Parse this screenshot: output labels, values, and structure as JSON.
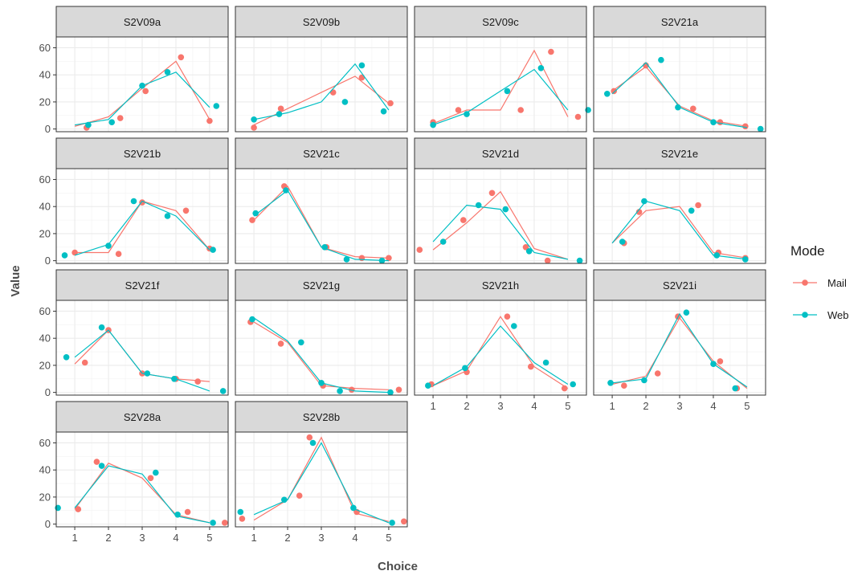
{
  "chart_data": {
    "type": "line+scatter facets",
    "xlabel": "Choice",
    "ylabel": "Value",
    "x": [
      1,
      2,
      3,
      4,
      5
    ],
    "x_ticks": [
      "1",
      "2",
      "3",
      "4",
      "5"
    ],
    "y_ticks": [
      "0",
      "20",
      "40",
      "60"
    ],
    "ylim": [
      -2,
      68
    ],
    "xlim": [
      0.45,
      5.55
    ],
    "grid": true,
    "legend": {
      "title": "Mode",
      "position": "right",
      "entries": [
        {
          "name": "Mail",
          "color": "#F8766D"
        },
        {
          "name": "Web",
          "color": "#00BFC4"
        }
      ]
    },
    "panels": [
      {
        "title": "S2V09a",
        "series": [
          {
            "name": "Mail",
            "line": [
              2,
              9,
              30,
              50,
              7
            ],
            "points": [
              [
                1.35,
                1
              ],
              [
                2.35,
                8
              ],
              [
                3.1,
                28
              ],
              [
                4.15,
                53
              ],
              [
                5.0,
                6
              ]
            ]
          },
          {
            "name": "Web",
            "line": [
              3,
              7,
              32,
              42,
              16
            ],
            "points": [
              [
                1.4,
                3
              ],
              [
                2.1,
                5
              ],
              [
                3.0,
                32
              ],
              [
                3.75,
                42
              ],
              [
                5.2,
                17
              ]
            ]
          }
        ]
      },
      {
        "title": "S2V09b",
        "series": [
          {
            "name": "Mail",
            "line": [
              3,
              15,
              27,
              39,
              19
            ],
            "points": [
              [
                1.0,
                1
              ],
              [
                1.8,
                15
              ],
              [
                3.35,
                27
              ],
              [
                4.2,
                38
              ],
              [
                5.05,
                19
              ]
            ]
          },
          {
            "name": "Web",
            "line": [
              7,
              12,
              20,
              48,
              14
            ],
            "points": [
              [
                1.0,
                7
              ],
              [
                1.75,
                11
              ],
              [
                3.7,
                20
              ],
              [
                4.2,
                47
              ],
              [
                4.85,
                13
              ]
            ]
          }
        ]
      },
      {
        "title": "S2V09c",
        "series": [
          {
            "name": "Mail",
            "line": [
              4,
              14,
              14,
              58,
              9
            ],
            "points": [
              [
                1.0,
                5
              ],
              [
                1.75,
                14
              ],
              [
                3.6,
                14
              ],
              [
                4.5,
                57
              ],
              [
                5.3,
                9
              ]
            ]
          },
          {
            "name": "Web",
            "line": [
              3,
              12,
              28,
              44,
              14
            ],
            "points": [
              [
                1.0,
                3
              ],
              [
                2.0,
                11
              ],
              [
                3.2,
                28
              ],
              [
                4.2,
                45
              ],
              [
                5.6,
                14
              ]
            ]
          }
        ]
      },
      {
        "title": "S2V21a",
        "series": [
          {
            "name": "Mail",
            "line": [
              28,
              46,
              17,
              6,
              2
            ],
            "points": [
              [
                1.05,
                28
              ],
              [
                2.0,
                47
              ],
              [
                3.4,
                15
              ],
              [
                4.2,
                5
              ],
              [
                4.95,
                2
              ]
            ]
          },
          {
            "name": "Web",
            "line": [
              26,
              49,
              16,
              5,
              1
            ],
            "points": [
              [
                0.85,
                26
              ],
              [
                2.45,
                51
              ],
              [
                2.95,
                16
              ],
              [
                4.0,
                5
              ],
              [
                5.4,
                0
              ]
            ]
          }
        ]
      },
      {
        "title": "S2V21b",
        "series": [
          {
            "name": "Mail",
            "line": [
              6,
              6,
              44,
              37,
              8
            ],
            "points": [
              [
                1.0,
                6
              ],
              [
                2.3,
                5
              ],
              [
                3.0,
                43
              ],
              [
                4.3,
                37
              ],
              [
                5.0,
                9
              ]
            ]
          },
          {
            "name": "Web",
            "line": [
              4,
              12,
              44,
              33,
              8
            ],
            "points": [
              [
                0.7,
                4
              ],
              [
                2.0,
                11
              ],
              [
                2.75,
                44
              ],
              [
                3.75,
                33
              ],
              [
                5.1,
                8
              ]
            ]
          }
        ]
      },
      {
        "title": "S2V21c",
        "series": [
          {
            "name": "Mail",
            "line": [
              30,
              55,
              10,
              3,
              2
            ],
            "points": [
              [
                0.95,
                30
              ],
              [
                1.9,
                55
              ],
              [
                3.15,
                10
              ],
              [
                4.2,
                2
              ],
              [
                5.0,
                2
              ]
            ]
          },
          {
            "name": "Web",
            "line": [
              33,
              52,
              10,
              1,
              0
            ],
            "points": [
              [
                1.05,
                35
              ],
              [
                1.95,
                52
              ],
              [
                3.1,
                10
              ],
              [
                3.75,
                1
              ],
              [
                4.8,
                0
              ]
            ]
          }
        ]
      },
      {
        "title": "S2V21d",
        "series": [
          {
            "name": "Mail",
            "line": [
              8,
              28,
              51,
              9,
              1
            ],
            "points": [
              [
                0.6,
                8
              ],
              [
                1.9,
                30
              ],
              [
                2.75,
                50
              ],
              [
                3.75,
                10
              ],
              [
                4.4,
                0
              ]
            ]
          },
          {
            "name": "Web",
            "line": [
              14,
              41,
              38,
              6,
              1
            ],
            "points": [
              [
                1.3,
                14
              ],
              [
                2.35,
                41
              ],
              [
                3.15,
                38
              ],
              [
                3.85,
                7
              ],
              [
                5.35,
                0
              ]
            ]
          }
        ]
      },
      {
        "title": "S2V21e",
        "series": [
          {
            "name": "Mail",
            "line": [
              13,
              37,
              40,
              6,
              2
            ],
            "points": [
              [
                1.35,
                13
              ],
              [
                1.8,
                36
              ],
              [
                3.55,
                41
              ],
              [
                4.15,
                6
              ],
              [
                4.95,
                2
              ]
            ]
          },
          {
            "name": "Web",
            "line": [
              13,
              44,
              37,
              4,
              1
            ],
            "points": [
              [
                1.3,
                14
              ],
              [
                1.95,
                44
              ],
              [
                3.35,
                37
              ],
              [
                4.1,
                4
              ],
              [
                4.95,
                1
              ]
            ]
          }
        ]
      },
      {
        "title": "S2V21f",
        "series": [
          {
            "name": "Mail",
            "line": [
              21,
              46,
              14,
              10,
              8
            ],
            "points": [
              [
                1.3,
                22
              ],
              [
                2.0,
                46
              ],
              [
                3.0,
                14
              ],
              [
                4.0,
                10
              ],
              [
                4.65,
                8
              ]
            ]
          },
          {
            "name": "Web",
            "line": [
              26,
              46,
              14,
              10,
              1
            ],
            "points": [
              [
                0.75,
                26
              ],
              [
                1.8,
                48
              ],
              [
                3.15,
                14
              ],
              [
                3.95,
                10
              ],
              [
                5.4,
                1
              ]
            ]
          }
        ]
      },
      {
        "title": "S2V21g",
        "series": [
          {
            "name": "Mail",
            "line": [
              52,
              37,
              5,
              3,
              2
            ],
            "points": [
              [
                0.9,
                52
              ],
              [
                1.8,
                36
              ],
              [
                3.05,
                5
              ],
              [
                3.9,
                2
              ],
              [
                5.3,
                2
              ]
            ]
          },
          {
            "name": "Web",
            "line": [
              55,
              38,
              7,
              1,
              0
            ],
            "points": [
              [
                0.95,
                54
              ],
              [
                2.4,
                37
              ],
              [
                3.0,
                7
              ],
              [
                3.55,
                1
              ],
              [
                5.05,
                0
              ]
            ]
          }
        ]
      },
      {
        "title": "S2V21h",
        "series": [
          {
            "name": "Mail",
            "line": [
              5,
              16,
              56,
              19,
              3
            ],
            "points": [
              [
                0.95,
                6
              ],
              [
                2.0,
                15
              ],
              [
                3.2,
                56
              ],
              [
                3.9,
                19
              ],
              [
                4.9,
                3
              ]
            ]
          },
          {
            "name": "Web",
            "line": [
              5,
              19,
              49,
              22,
              6
            ],
            "points": [
              [
                0.85,
                5
              ],
              [
                1.95,
                18
              ],
              [
                3.4,
                49
              ],
              [
                4.35,
                22
              ],
              [
                5.15,
                6
              ]
            ]
          }
        ]
      },
      {
        "title": "S2V21i",
        "series": [
          {
            "name": "Mail",
            "line": [
              6,
              12,
              55,
              23,
              3
            ],
            "points": [
              [
                1.35,
                5
              ],
              [
                2.35,
                14
              ],
              [
                2.95,
                56
              ],
              [
                4.2,
                23
              ],
              [
                4.7,
                3
              ]
            ]
          },
          {
            "name": "Web",
            "line": [
              7,
              10,
              58,
              21,
              4
            ],
            "points": [
              [
                0.95,
                7
              ],
              [
                1.95,
                9
              ],
              [
                3.2,
                59
              ],
              [
                4.0,
                21
              ],
              [
                4.65,
                3
              ]
            ]
          }
        ]
      },
      {
        "title": "S2V28a",
        "series": [
          {
            "name": "Mail",
            "line": [
              11,
              45,
              34,
              7,
              1
            ],
            "points": [
              [
                1.1,
                11
              ],
              [
                1.65,
                46
              ],
              [
                3.25,
                34
              ],
              [
                4.35,
                9
              ],
              [
                5.45,
                1
              ]
            ]
          },
          {
            "name": "Web",
            "line": [
              12,
              43,
              37,
              6,
              1
            ],
            "points": [
              [
                0.5,
                12
              ],
              [
                1.8,
                43
              ],
              [
                3.4,
                38
              ],
              [
                4.05,
                7
              ],
              [
                5.1,
                1
              ]
            ]
          }
        ]
      },
      {
        "title": "S2V28b",
        "series": [
          {
            "name": "Mail",
            "line": [
              3,
              18,
              64,
              8,
              2
            ],
            "points": [
              [
                0.65,
                4
              ],
              [
                2.35,
                21
              ],
              [
                2.65,
                64
              ],
              [
                4.05,
                9
              ],
              [
                5.45,
                2
              ]
            ]
          },
          {
            "name": "Web",
            "line": [
              7,
              18,
              60,
              11,
              1
            ],
            "points": [
              [
                0.6,
                9
              ],
              [
                1.9,
                18
              ],
              [
                2.75,
                60
              ],
              [
                3.95,
                12
              ],
              [
                5.1,
                1
              ]
            ]
          }
        ]
      }
    ]
  }
}
